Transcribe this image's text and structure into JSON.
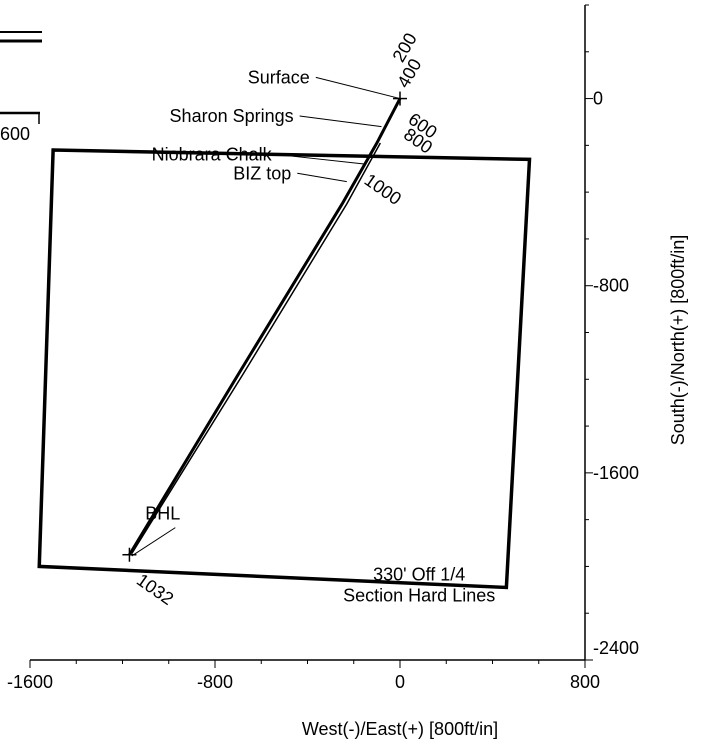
{
  "chart_data": {
    "type": "plan-view",
    "xlabel": "West(-)/East(+) [800ft/in]",
    "ylabel": "South(-)/North(+) [800ft/in]",
    "xlim": [
      -1600,
      800
    ],
    "ylim": [
      -2400,
      400
    ],
    "x_ticks": [
      {
        "value": -1600,
        "label": "-1600"
      },
      {
        "value": -800,
        "label": "-800"
      },
      {
        "value": 0,
        "label": "0"
      },
      {
        "value": 800,
        "label": "800"
      }
    ],
    "y_ticks": [
      {
        "value": 0,
        "label": "0"
      },
      {
        "value": -800,
        "label": "-800"
      },
      {
        "value": -1600,
        "label": "-1600"
      },
      {
        "value": -2400,
        "label": "-2400"
      }
    ],
    "top_partial_label": "600",
    "section_box": [
      [
        -1500,
        -220
      ],
      [
        560,
        -260
      ],
      [
        460,
        -2090
      ],
      [
        -1560,
        -2000
      ]
    ],
    "wellpath": [
      {
        "x": 0,
        "y": 0
      },
      {
        "x": -100,
        "y": -190
      },
      {
        "x": -250,
        "y": -450
      },
      {
        "x": -700,
        "y": -1180
      },
      {
        "x": -1170,
        "y": -1950
      }
    ],
    "wellpath_offset_line": [
      {
        "x": -85,
        "y": -190
      },
      {
        "x": -230,
        "y": -450
      },
      {
        "x": -680,
        "y": -1180
      },
      {
        "x": -1160,
        "y": -1945
      }
    ],
    "md_labels": [
      {
        "text": "200",
        "x": 10,
        "y": 150
      },
      {
        "text": "400",
        "x": 30,
        "y": 40
      },
      {
        "text": "600",
        "x": 30,
        "y": -100
      },
      {
        "text": "800",
        "x": 10,
        "y": -165
      },
      {
        "text": "1000",
        "x": -160,
        "y": -360
      },
      {
        "text": "1032",
        "x": -1145,
        "y": -2070
      }
    ],
    "annotations": [
      {
        "text": "Surface",
        "lx": -390,
        "ly": 65,
        "tx": 0,
        "ty": 0
      },
      {
        "text": "Sharon Springs",
        "lx": -460,
        "ly": -100,
        "tx": -80,
        "ty": -120
      },
      {
        "text": "Niobrara Chalk",
        "lx": -555,
        "ly": -265,
        "tx": -150,
        "ty": -280
      },
      {
        "text": "BIZ top",
        "lx": -470,
        "ly": -345,
        "tx": -230,
        "ty": -355
      },
      {
        "text": "BHL",
        "lx": -950,
        "ly": -1800,
        "tx": -1160,
        "ty": -1955
      },
      {
        "text": "330' Off 1/4",
        "lx": -90,
        "ly": -2060,
        "tx": null,
        "ty": null
      },
      {
        "text": "Section Hard Lines",
        "lx": -90,
        "ly": -2150,
        "tx": null,
        "ty": null
      }
    ],
    "grid": false
  }
}
